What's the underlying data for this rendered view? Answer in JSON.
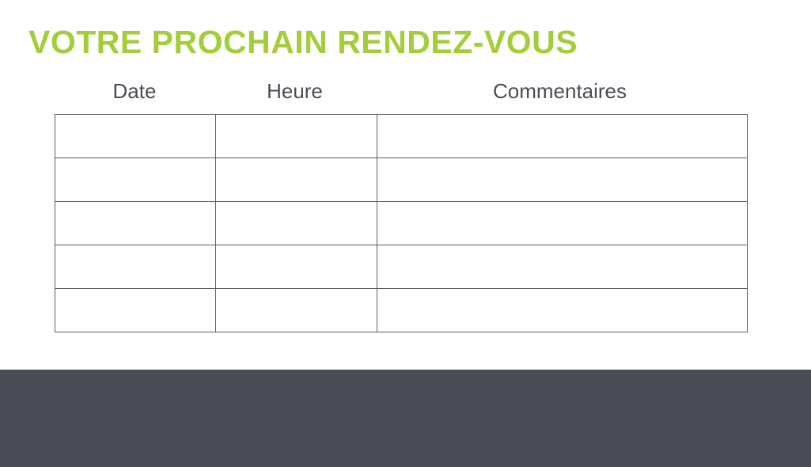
{
  "title": "VOTRE PROCHAIN RENDEZ-VOUS",
  "table": {
    "columns": [
      "Date",
      "Heure",
      "Commentaires"
    ],
    "rows": [
      [
        "",
        "",
        ""
      ],
      [
        "",
        "",
        ""
      ],
      [
        "",
        "",
        ""
      ],
      [
        "",
        "",
        ""
      ],
      [
        "",
        "",
        ""
      ]
    ]
  },
  "colors": {
    "accent": "#a4cd3c",
    "text": "#4a4d57",
    "footer": "#4a4d57"
  }
}
